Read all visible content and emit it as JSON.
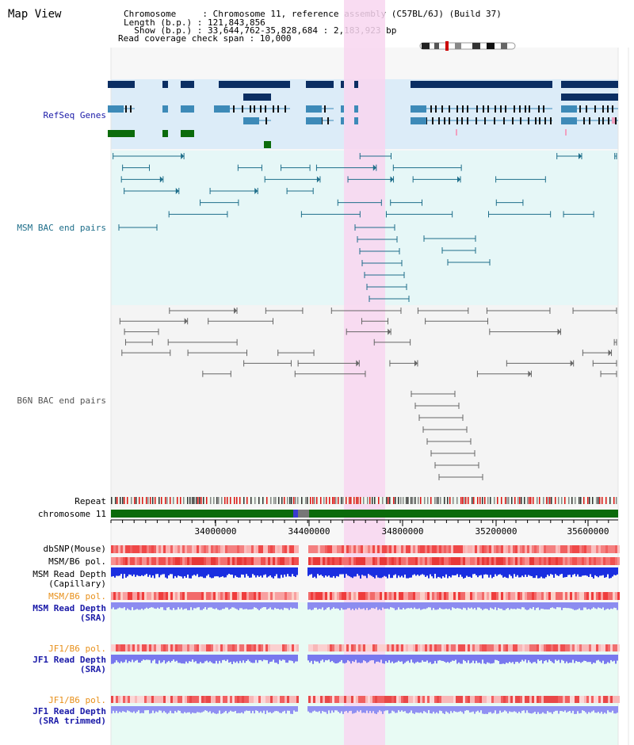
{
  "page": {
    "title": "Map View"
  },
  "info": {
    "line1": "Chromosome     : Chromosome 11, reference assembly (C57BL/6J) (Build 37)",
    "line2": "Length (b.p.) : 121,843,856",
    "line3": "  Show (b.p.) : 33,644,762-35,828,684 : 2,183,923 bp",
    "line4": "Read coverage check span : 10,000"
  },
  "tracks": {
    "refseq": "RefSeq Genes",
    "msm_bac": "MSM BAC end pairs",
    "b6n_bac": "B6N BAC end pairs",
    "repeat": "Repeat",
    "chromosome": "chromosome 11",
    "dbsnp": "dbSNP(Mouse)",
    "msm_b6_pol": "MSM/B6 pol.",
    "msm_read_depth_cap_1": "MSM Read Depth",
    "msm_read_depth_cap_2": "(Capillary)",
    "msm_b6_pol_sra": "MSM/B6 pol.",
    "msm_read_depth_sra_1": "MSM Read Depth",
    "msm_read_depth_sra_2": "(SRA)",
    "jf1_b6_pol": "JF1/B6 pol.",
    "jf1_read_depth_1": "JF1 Read Depth",
    "jf1_read_depth_2": "(SRA)",
    "jf1_b6_pol_trim": "JF1/B6 pol.",
    "jf1_read_depth_trim_1": "JF1 Read Depth",
    "jf1_read_depth_trim_2": "(SRA trimmed)"
  },
  "axis": {
    "ticks": [
      "34000000",
      "34400000",
      "34800000",
      "35200000",
      "35600000"
    ]
  },
  "colors": {
    "refseq_dark": "#0b2e63",
    "refseq_mid": "#3d8ab8",
    "refseq_green": "#0b6b0b",
    "msm_bac": "#1e6e8a",
    "b6n_bac": "#666666",
    "highlight": "#f8d6f0",
    "orange_label": "#e8901a",
    "blue_label": "#1a1aa8"
  }
}
